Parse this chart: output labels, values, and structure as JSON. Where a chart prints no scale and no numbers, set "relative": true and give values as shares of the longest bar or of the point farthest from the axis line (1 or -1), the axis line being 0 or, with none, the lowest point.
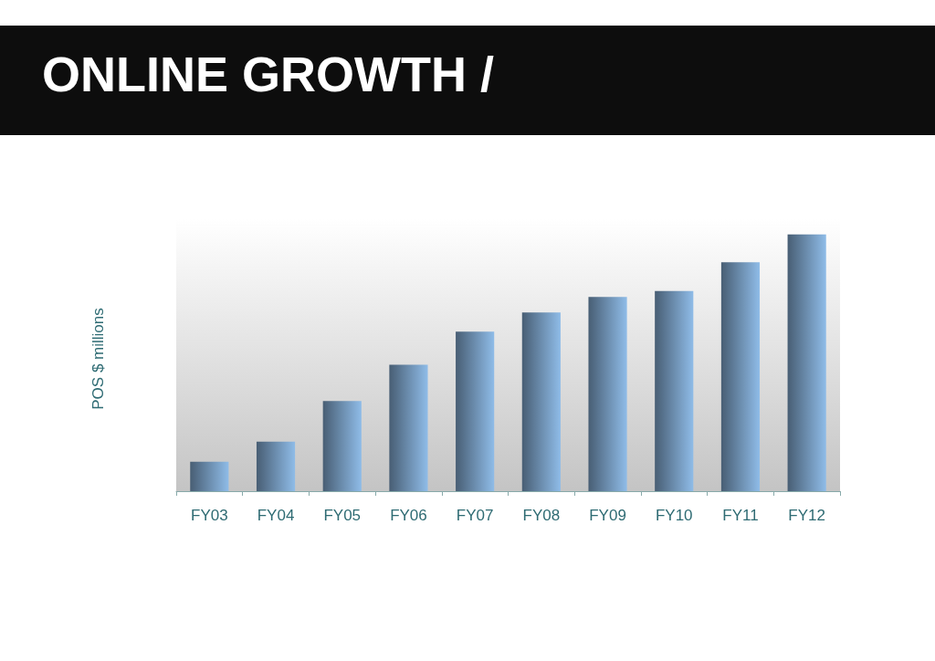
{
  "chart_data": {
    "type": "bar",
    "title": "ONLINE GROWTH /",
    "ylabel": "POS $ millions",
    "relative": true,
    "categories": [
      "FY03",
      "FY04",
      "FY05",
      "FY06",
      "FY07",
      "FY08",
      "FY09",
      "FY10",
      "FY11",
      "FY12"
    ],
    "values": [
      0.115,
      0.193,
      0.351,
      0.493,
      0.622,
      0.696,
      0.757,
      0.78,
      0.892,
      1
    ],
    "color": "#8fbce8"
  }
}
